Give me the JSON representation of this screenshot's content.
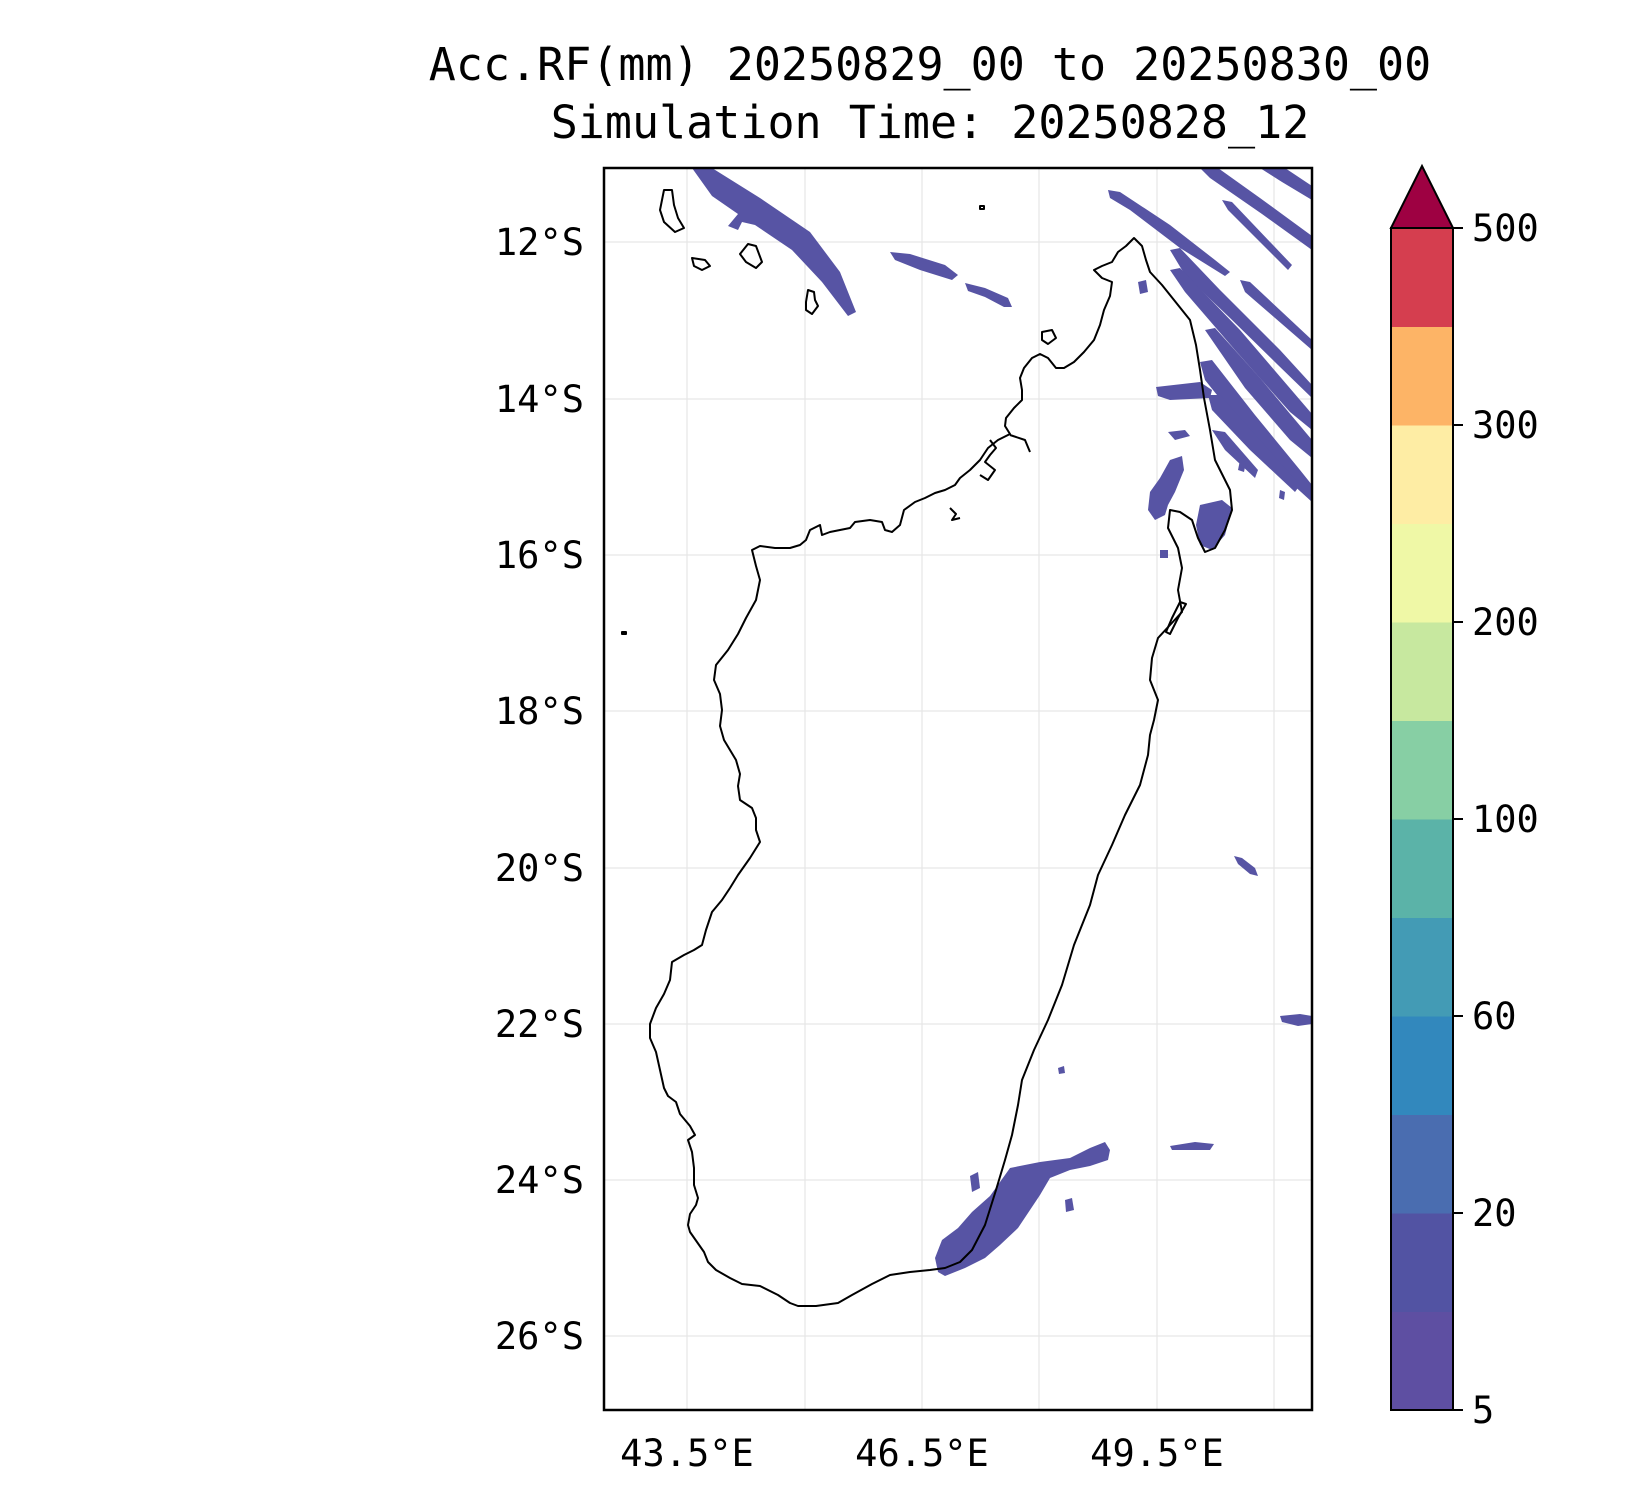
{
  "title": {
    "line1": "Acc.RF(mm) 20250829_00 to 20250830_00",
    "line2": "Simulation Time: 20250828_12"
  },
  "map": {
    "lat_labels": [
      "12°S",
      "14°S",
      "16°S",
      "18°S",
      "20°S",
      "22°S",
      "24°S",
      "26°S"
    ],
    "lon_labels": [
      "43.5°E",
      "46.5°E",
      "49.5°E"
    ],
    "extent": {
      "lon": [
        42.45,
        51.45
      ],
      "lat": [
        -27.0,
        -11.1
      ]
    },
    "grid": true
  },
  "colorbar": {
    "tick_labels": [
      "5",
      "20",
      "60",
      "100",
      "200",
      "300",
      "500"
    ],
    "colors": [
      "#5e4fa2",
      "#5253a3",
      "#4a6db0",
      "#3288bd",
      "#439bb5",
      "#5bb3a8",
      "#87cfa4",
      "#c7e89f",
      "#eff8a6",
      "#feeda4",
      "#fdb466",
      "#d53e4f"
    ],
    "extend_color": "#9e0142",
    "extend": "max"
  },
  "rain_fill_color": "#5754a4"
}
